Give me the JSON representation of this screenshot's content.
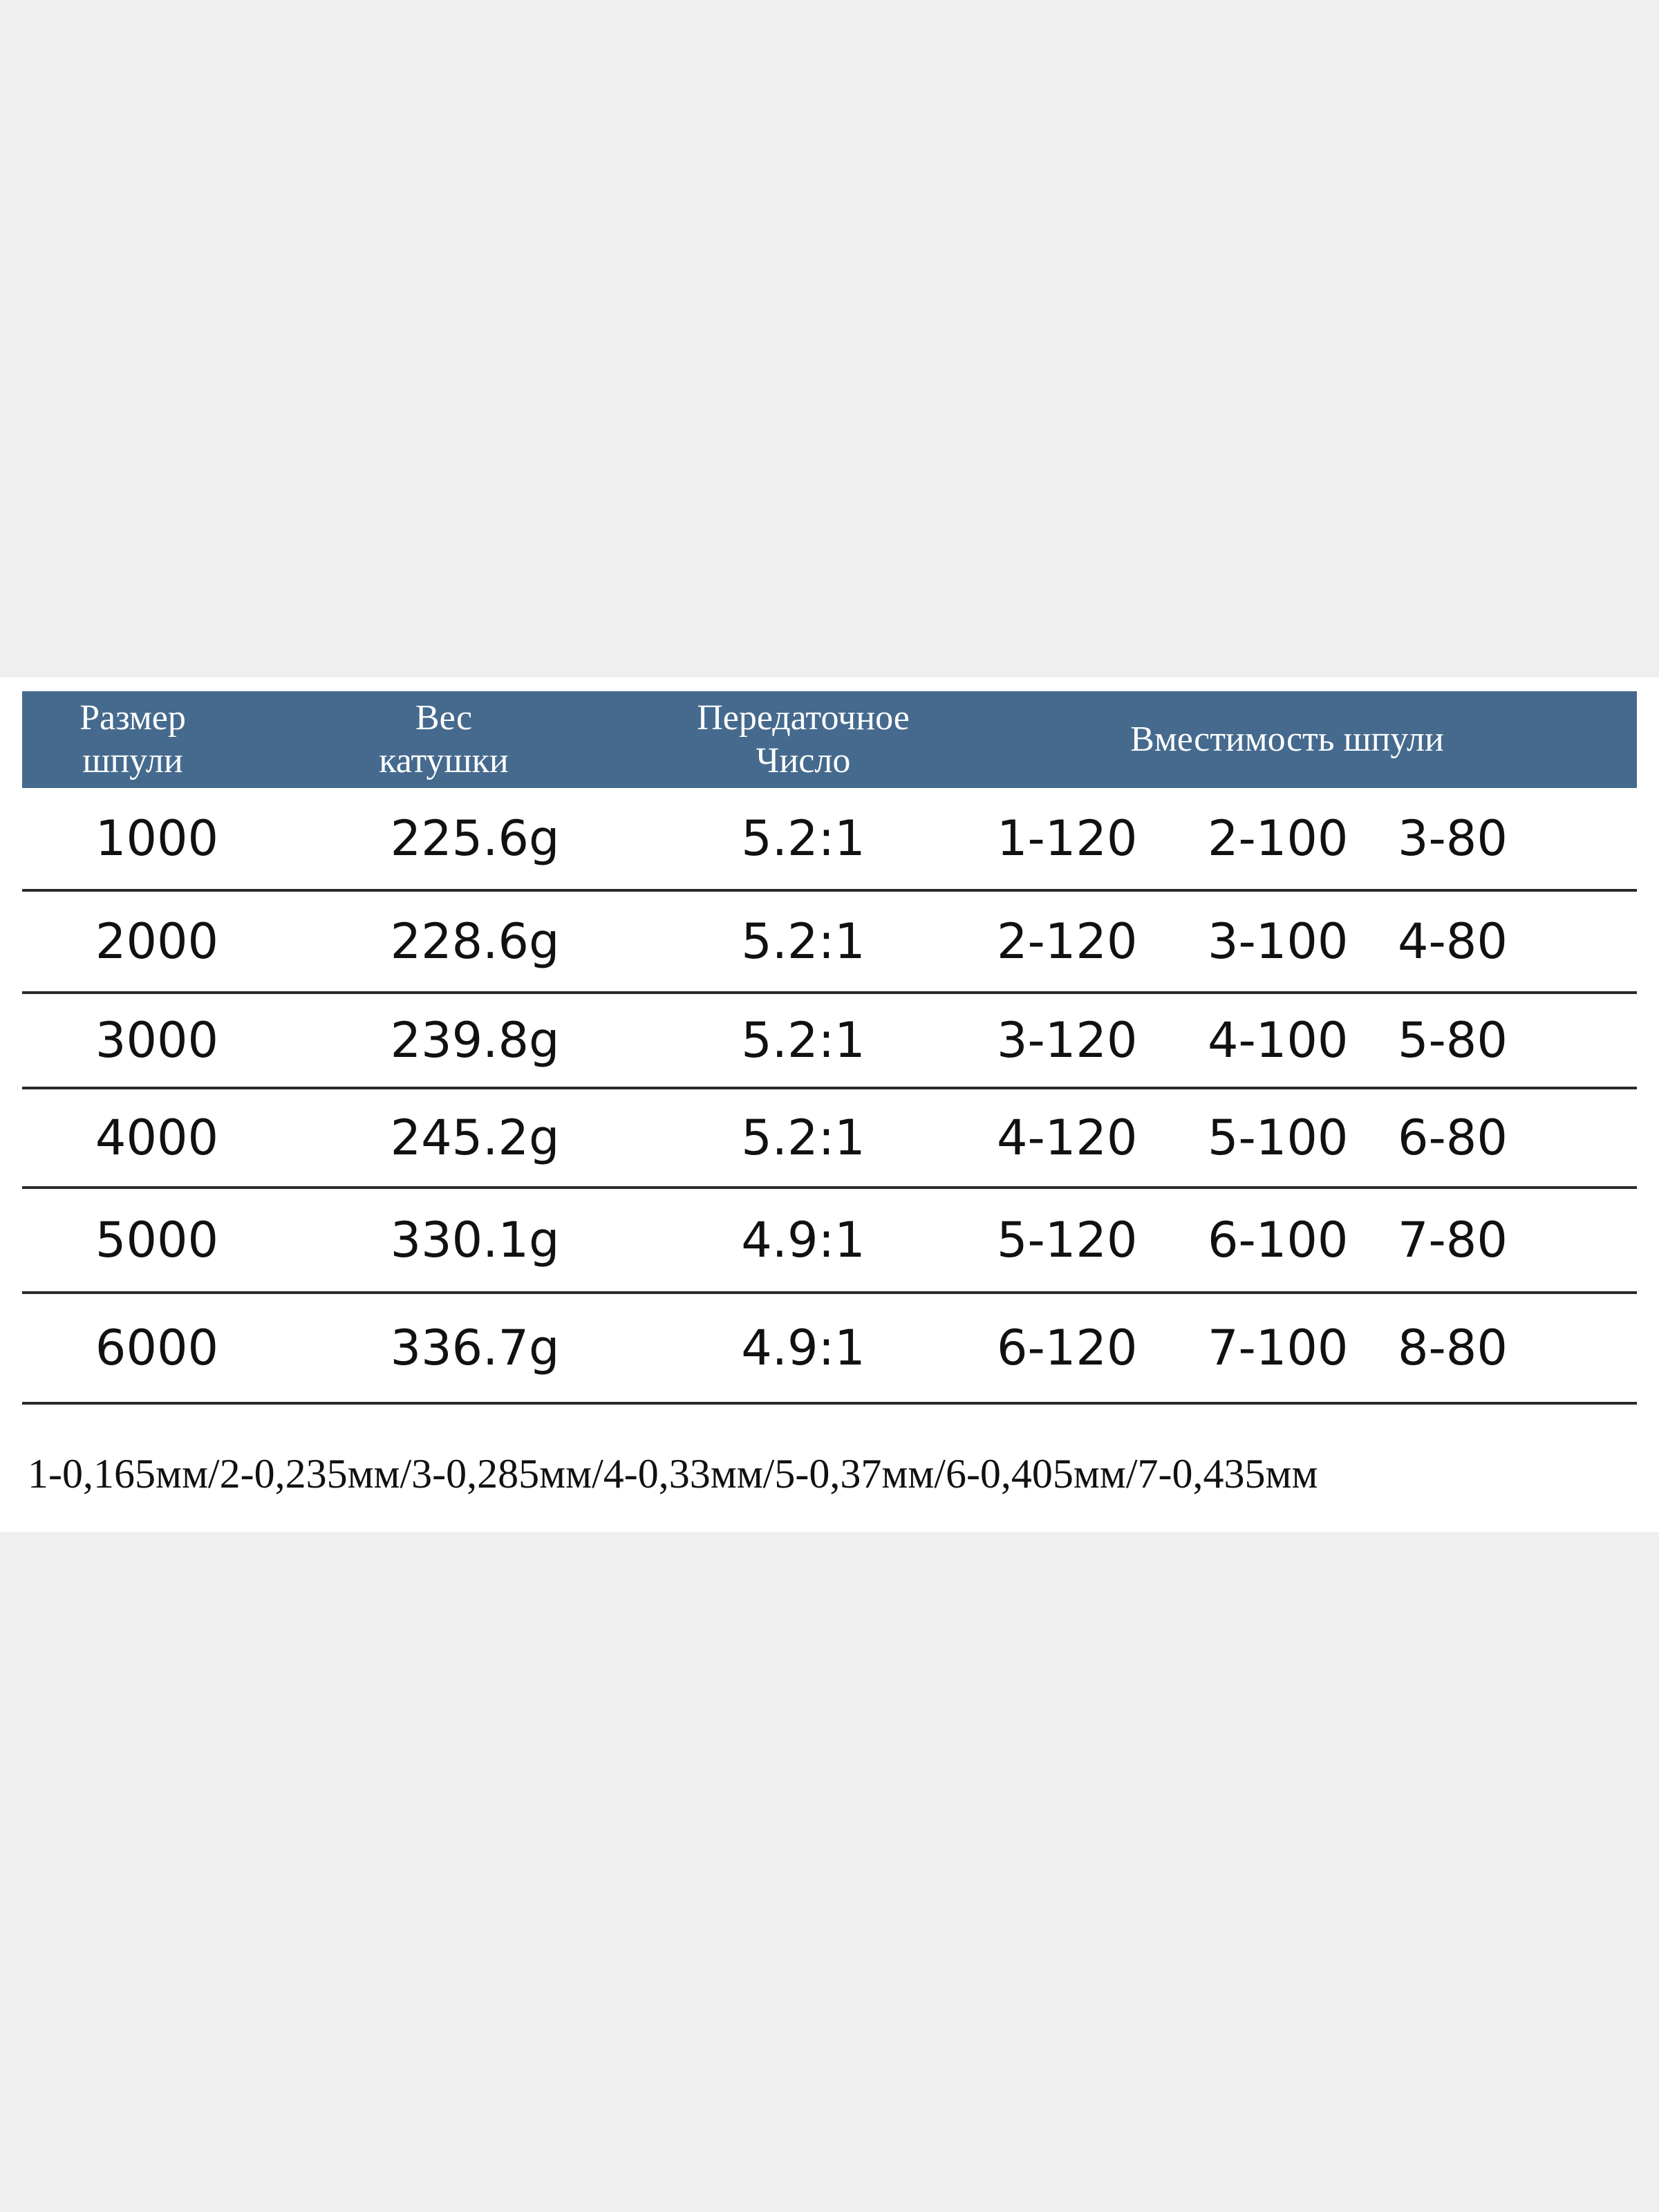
{
  "table": {
    "headers": {
      "spool_size": [
        "Размер",
        "шпули"
      ],
      "weight": [
        "Вес",
        "катушки"
      ],
      "ratio": [
        "Передаточное",
        "Число"
      ],
      "capacity": "Вместимость шпули"
    },
    "rows": [
      {
        "size": "1000",
        "weight": "225.6g",
        "ratio": "5.2:1",
        "capacity": [
          "1-120",
          "2-100",
          "3-80"
        ]
      },
      {
        "size": "2000",
        "weight": "228.6g",
        "ratio": "5.2:1",
        "capacity": [
          "2-120",
          "3-100",
          "4-80"
        ]
      },
      {
        "size": "3000",
        "weight": "239.8g",
        "ratio": "5.2:1",
        "capacity": [
          "3-120",
          "4-100",
          "5-80"
        ]
      },
      {
        "size": "4000",
        "weight": "245.2g",
        "ratio": "5.2:1",
        "capacity": [
          "4-120",
          "5-100",
          "6-80"
        ]
      },
      {
        "size": "5000",
        "weight": "330.1g",
        "ratio": "4.9:1",
        "capacity": [
          "5-120",
          "6-100",
          "7-80"
        ]
      },
      {
        "size": "6000",
        "weight": "336.7g",
        "ratio": "4.9:1",
        "capacity": [
          "6-120",
          "7-100",
          "8-80"
        ]
      }
    ],
    "footnote": "1-0,165мм/2-0,235мм/3-0,285мм/4-0,33мм/5-0,37мм/6-0,405мм/7-0,435мм"
  },
  "colors": {
    "header_bg": "#456a8e",
    "header_text": "#ffffff",
    "page_bg": "#efefef",
    "card_bg": "#ffffff"
  }
}
